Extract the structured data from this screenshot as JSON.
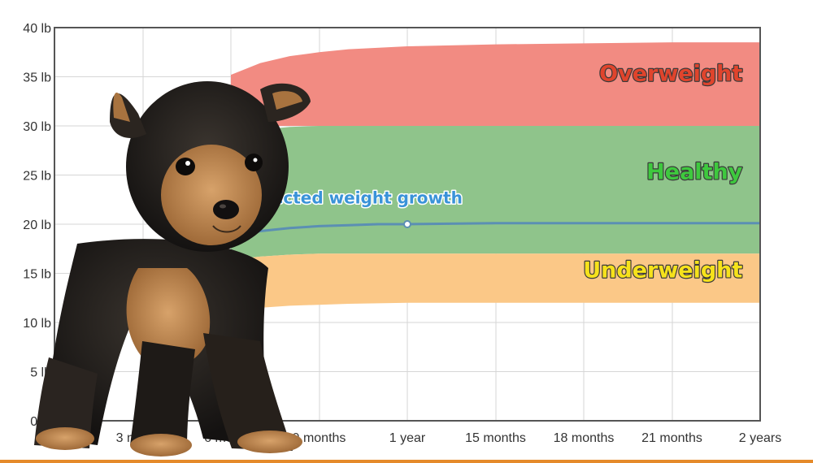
{
  "chart_data": {
    "type": "area",
    "y_ticks": [
      "0 lb",
      "5 lb",
      "10 lb",
      "15 lb",
      "20 lb",
      "25 lb",
      "30 lb",
      "35 lb",
      "40 lb"
    ],
    "y_tick_values": [
      0,
      5,
      10,
      15,
      20,
      25,
      30,
      35,
      40
    ],
    "ylim": [
      0,
      40
    ],
    "x_ticks": [
      "3 months",
      "6 months",
      "9 months",
      "1 year",
      "15 months",
      "18 months",
      "21 months",
      "2 years"
    ],
    "x_tick_values": [
      3,
      6,
      9,
      12,
      15,
      18,
      21,
      24
    ],
    "xlim": [
      0,
      24
    ],
    "grid": true,
    "bands": [
      {
        "name": "Overweight",
        "x": [
          6,
          7,
          8,
          9,
          10,
          12,
          15,
          18,
          21,
          24
        ],
        "lower": [
          30,
          30,
          30,
          30,
          30,
          30,
          30,
          30,
          30,
          30
        ],
        "upper": [
          35.2,
          36.4,
          37.1,
          37.5,
          37.8,
          38.1,
          38.3,
          38.4,
          38.5,
          38.5
        ],
        "color": "#f28b82"
      },
      {
        "name": "Healthy",
        "x": [
          6,
          7,
          8,
          9,
          10,
          12,
          15,
          18,
          21,
          24
        ],
        "lower": [
          16.4,
          16.7,
          16.9,
          17.0,
          17.0,
          17.0,
          17.0,
          17.0,
          17.0,
          17.0
        ],
        "upper": [
          29,
          29.6,
          29.9,
          30,
          30,
          30,
          30,
          30,
          30,
          30
        ],
        "color": "#8fc48b"
      },
      {
        "name": "Underweight",
        "x": [
          6,
          7,
          8,
          9,
          10,
          12,
          15,
          18,
          21,
          24
        ],
        "lower": [
          11.2,
          11.5,
          11.7,
          11.8,
          11.9,
          12.0,
          12.0,
          12.0,
          12.0,
          12.0
        ],
        "upper": [
          16.4,
          16.7,
          16.9,
          17.0,
          17.0,
          17.0,
          17.0,
          17.0,
          17.0,
          17.0
        ],
        "color": "#fbc887"
      }
    ],
    "series": [
      {
        "name": "Puppy's projected weight growth",
        "x": [
          6,
          7,
          8,
          9,
          10,
          11,
          12,
          15,
          18,
          21,
          24
        ],
        "y": [
          18.8,
          19.3,
          19.6,
          19.8,
          19.9,
          20.0,
          20.0,
          20.1,
          20.1,
          20.1,
          20.1
        ],
        "color": "#5b8fb3",
        "marker_x": 12
      }
    ],
    "annotations": [
      {
        "text": "Overweight",
        "color": "#e0442c",
        "x": 23.4,
        "y": 34.6
      },
      {
        "text": "Healthy",
        "color": "#3ec93e",
        "x": 23.4,
        "y": 24.6
      },
      {
        "text": "Underweight",
        "color": "#f6e21b",
        "x": 23.4,
        "y": 14.6
      },
      {
        "text": "Puppy's projected weight growth",
        "color": "#3a93d8",
        "x": 8.7,
        "y": 22.1
      }
    ]
  },
  "image": {
    "subject": "yorkshire-terrier-puppy"
  },
  "colors": {
    "accent_bar": "#e58a2a",
    "grid": "#d6d6d6",
    "axis": "#555555"
  }
}
